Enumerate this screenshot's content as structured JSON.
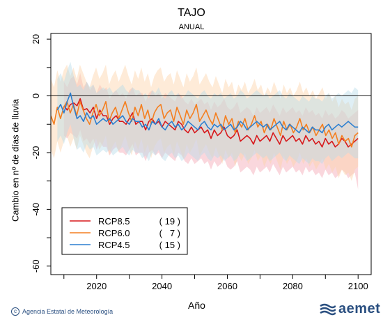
{
  "title": "TAJO",
  "subtitle": "ANUAL",
  "footer": {
    "agency": "Agencia Estatal de Meteorología",
    "brand": "aemet"
  },
  "chart_data": {
    "type": "line",
    "xlabel": "Año",
    "ylabel": "Cambio en nº de días de lluvia",
    "xlim": [
      2006,
      2104
    ],
    "ylim": [
      -63,
      22
    ],
    "xticks": [
      2020,
      2040,
      2060,
      2080,
      2100
    ],
    "yticks": [
      20,
      0,
      -20,
      -40,
      -60
    ],
    "reference_line": 0,
    "legend": {
      "position": "bottom-left"
    },
    "series": [
      {
        "name": "RCP8.5",
        "count_label": "( 19 )",
        "color": "#d7191c",
        "band_color": "#f4a6b4",
        "x_start": 2010,
        "x_end": 2100,
        "values": [
          -3.5,
          -5,
          -3,
          -2.5,
          -3.5,
          -1,
          -5,
          -4.5,
          -6,
          -4,
          -8,
          -5,
          -7,
          -7,
          -10,
          -8,
          -7,
          -9,
          -9,
          -10,
          -8,
          -6,
          -10,
          -9,
          -9,
          -12,
          -9,
          -8,
          -10,
          -9,
          -11,
          -9,
          -10,
          -11,
          -12,
          -9,
          -10,
          -12,
          -13,
          -11,
          -13,
          -12,
          -11,
          -13,
          -12,
          -15,
          -12,
          -14,
          -13,
          -11,
          -14,
          -15,
          -14,
          -12,
          -16,
          -15,
          -14,
          -15,
          -17,
          -14,
          -16,
          -15,
          -14,
          -16,
          -13,
          -15,
          -17,
          -14,
          -16,
          -15,
          -14,
          -16,
          -15,
          -17,
          -14,
          -16,
          -15,
          -17,
          -16,
          -18,
          -15,
          -17,
          -16,
          -18,
          -17,
          -15,
          -16,
          -18,
          -17,
          -16,
          -15
        ],
        "lower": [
          -14,
          -15,
          -13,
          -14,
          -15,
          -12,
          -16,
          -15,
          -17,
          -15,
          -19,
          -16,
          -18,
          -18,
          -21,
          -19,
          -18,
          -20,
          -20,
          -21,
          -19,
          -17,
          -21,
          -20,
          -20,
          -23,
          -20,
          -19,
          -21,
          -20,
          -22,
          -20,
          -21,
          -22,
          -23,
          -20,
          -21,
          -23,
          -24,
          -22,
          -24,
          -23,
          -22,
          -24,
          -23,
          -26,
          -23,
          -25,
          -24,
          -22,
          -25,
          -26,
          -25,
          -23,
          -27,
          -26,
          -25,
          -26,
          -28,
          -25,
          -27,
          -26,
          -25,
          -27,
          -24,
          -26,
          -28,
          -25,
          -27,
          -26,
          -25,
          -27,
          -26,
          -28,
          -25,
          -27,
          -26,
          -28,
          -27,
          -29,
          -26,
          -28,
          -27,
          -29,
          -28,
          -26,
          -27,
          -29,
          -28,
          -27,
          -33
        ],
        "upper": [
          5,
          3,
          6,
          7,
          4,
          8,
          3,
          5,
          2,
          4,
          1,
          4,
          2,
          3,
          -1,
          1,
          2,
          0,
          1,
          -1,
          2,
          3,
          0,
          1,
          1,
          -2,
          1,
          2,
          0,
          1,
          -1,
          1,
          0,
          -1,
          -2,
          1,
          0,
          -2,
          -3,
          -1,
          -3,
          -2,
          -1,
          -3,
          -2,
          -5,
          -2,
          -4,
          -3,
          -1,
          -4,
          -5,
          -4,
          -2,
          -6,
          -5,
          -4,
          -5,
          -7,
          -4,
          -6,
          -5,
          -4,
          -6,
          -3,
          -5,
          -7,
          -4,
          -6,
          -5,
          -4,
          -6,
          -5,
          -7,
          -4,
          -6,
          -5,
          -7,
          -6,
          -8,
          -5,
          -7,
          -6,
          -8,
          -7,
          -5,
          -6,
          -8,
          -7,
          -6,
          -5
        ]
      },
      {
        "name": "RCP6.0",
        "count_label": "(   7 )",
        "color": "#f47f20",
        "band_color": "#fdd3a8",
        "x_start": 2006,
        "x_end": 2100,
        "values": [
          -7,
          -10,
          -4,
          -8,
          -4,
          -2,
          -6,
          -3,
          -7,
          -2,
          -5,
          -8,
          -10,
          -6,
          -3,
          -7,
          -5,
          -2,
          -9,
          -6,
          -4,
          -8,
          -5,
          -2,
          -6,
          -9,
          -4,
          -7,
          -3,
          -8,
          -5,
          -10,
          -6,
          -4,
          -3,
          -8,
          -6,
          -5,
          -9,
          -4,
          -7,
          -10,
          -5,
          -8,
          -6,
          -3,
          -9,
          -7,
          -5,
          -8,
          -10,
          -6,
          -9,
          -12,
          -7,
          -10,
          -8,
          -13,
          -9,
          -11,
          -8,
          -12,
          -10,
          -7,
          -11,
          -9,
          -13,
          -10,
          -12,
          -8,
          -11,
          -14,
          -9,
          -12,
          -10,
          -13,
          -11,
          -8,
          -12,
          -10,
          -13,
          -11,
          -14,
          -12,
          -10,
          -14,
          -12,
          -15,
          -13,
          -17,
          -14,
          -16,
          -15,
          -18,
          -14,
          -13
        ],
        "lower": [
          -19,
          -22,
          -16,
          -20,
          -16,
          -14,
          -18,
          -15,
          -19,
          -14,
          -17,
          -20,
          -22,
          -18,
          -15,
          -19,
          -17,
          -14,
          -21,
          -18,
          -16,
          -20,
          -17,
          -14,
          -18,
          -21,
          -16,
          -19,
          -15,
          -20,
          -17,
          -22,
          -18,
          -16,
          -15,
          -20,
          -18,
          -17,
          -21,
          -16,
          -19,
          -22,
          -17,
          -20,
          -18,
          -15,
          -21,
          -19,
          -17,
          -20,
          -22,
          -18,
          -21,
          -24,
          -19,
          -22,
          -20,
          -25,
          -21,
          -23,
          -20,
          -24,
          -22,
          -19,
          -23,
          -21,
          -25,
          -22,
          -24,
          -20,
          -23,
          -26,
          -21,
          -24,
          -22,
          -25,
          -23,
          -20,
          -24,
          -22,
          -25,
          -23,
          -26,
          -24,
          -22,
          -26,
          -24,
          -27,
          -25,
          -29,
          -26,
          -28,
          -27,
          -30,
          -26,
          -25
        ],
        "upper": [
          6,
          3,
          9,
          5,
          9,
          11,
          7,
          10,
          6,
          11,
          8,
          5,
          3,
          7,
          10,
          6,
          8,
          11,
          4,
          7,
          9,
          5,
          8,
          11,
          7,
          4,
          9,
          6,
          10,
          5,
          8,
          3,
          7,
          9,
          10,
          5,
          7,
          8,
          4,
          9,
          6,
          3,
          8,
          5,
          7,
          10,
          4,
          6,
          8,
          5,
          3,
          7,
          4,
          1,
          6,
          3,
          5,
          0,
          4,
          2,
          5,
          1,
          3,
          6,
          2,
          4,
          0,
          3,
          1,
          5,
          2,
          -1,
          4,
          1,
          3,
          0,
          2,
          5,
          1,
          3,
          0,
          2,
          -1,
          1,
          3,
          -1,
          1,
          -2,
          0,
          -4,
          -1,
          -3,
          -2,
          -5,
          -1,
          0
        ]
      },
      {
        "name": "RCP4.5",
        "count_label": "( 15 )",
        "color": "#2c7fd0",
        "band_color": "#b8dbe8",
        "x_start": 2008,
        "x_end": 2100,
        "values": [
          -5,
          -3,
          -6,
          -2,
          1,
          -4,
          -8,
          -7,
          -9,
          -6,
          -8,
          -7,
          -10,
          -9,
          -8,
          -9,
          -8,
          -10,
          -9,
          -8,
          -7,
          -9,
          -10,
          -8,
          -9,
          -9,
          -11,
          -10,
          -12,
          -9,
          -10,
          -8,
          -11,
          -12,
          -10,
          -9,
          -11,
          -10,
          -12,
          -11,
          -9,
          -10,
          -11,
          -12,
          -10,
          -9,
          -11,
          -12,
          -10,
          -11,
          -10,
          -12,
          -11,
          -10,
          -12,
          -11,
          -9,
          -10,
          -12,
          -11,
          -10,
          -9,
          -10,
          -11,
          -10,
          -12,
          -11,
          -10,
          -9,
          -11,
          -12,
          -10,
          -11,
          -12,
          -13,
          -11,
          -12,
          -13,
          -11,
          -12,
          -12,
          -13,
          -11,
          -10,
          -12,
          -11,
          -10,
          -11,
          -10,
          -9,
          -10,
          -11,
          -11
        ],
        "lower": [
          -16,
          -14,
          -17,
          -13,
          -10,
          -15,
          -19,
          -18,
          -20,
          -17,
          -19,
          -18,
          -21,
          -20,
          -19,
          -20,
          -19,
          -21,
          -20,
          -19,
          -18,
          -20,
          -21,
          -19,
          -20,
          -20,
          -22,
          -21,
          -23,
          -20,
          -21,
          -19,
          -22,
          -23,
          -21,
          -20,
          -22,
          -21,
          -23,
          -22,
          -20,
          -21,
          -22,
          -23,
          -21,
          -20,
          -22,
          -23,
          -21,
          -22,
          -21,
          -23,
          -22,
          -21,
          -23,
          -22,
          -20,
          -21,
          -23,
          -22,
          -21,
          -20,
          -21,
          -22,
          -21,
          -23,
          -22,
          -21,
          -20,
          -22,
          -23,
          -21,
          -22,
          -23,
          -24,
          -22,
          -23,
          -24,
          -22,
          -23,
          -23,
          -24,
          -22,
          -21,
          -23,
          -22,
          -21,
          -22,
          -21,
          -20,
          -21,
          -22,
          -22
        ],
        "upper": [
          6,
          8,
          5,
          9,
          12,
          7,
          3,
          4,
          2,
          5,
          3,
          4,
          1,
          2,
          3,
          2,
          3,
          1,
          2,
          3,
          4,
          2,
          1,
          3,
          2,
          2,
          0,
          1,
          -1,
          2,
          1,
          3,
          0,
          -1,
          1,
          2,
          0,
          1,
          -1,
          0,
          2,
          1,
          0,
          -1,
          1,
          2,
          0,
          -1,
          1,
          0,
          1,
          -1,
          0,
          1,
          -1,
          0,
          2,
          1,
          -1,
          0,
          1,
          2,
          1,
          0,
          1,
          -1,
          0,
          1,
          2,
          0,
          -1,
          1,
          0,
          -1,
          -2,
          0,
          -1,
          -2,
          0,
          -1,
          -1,
          -2,
          0,
          1,
          -1,
          0,
          1,
          0,
          1,
          2,
          1,
          3,
          2
        ]
      }
    ]
  }
}
